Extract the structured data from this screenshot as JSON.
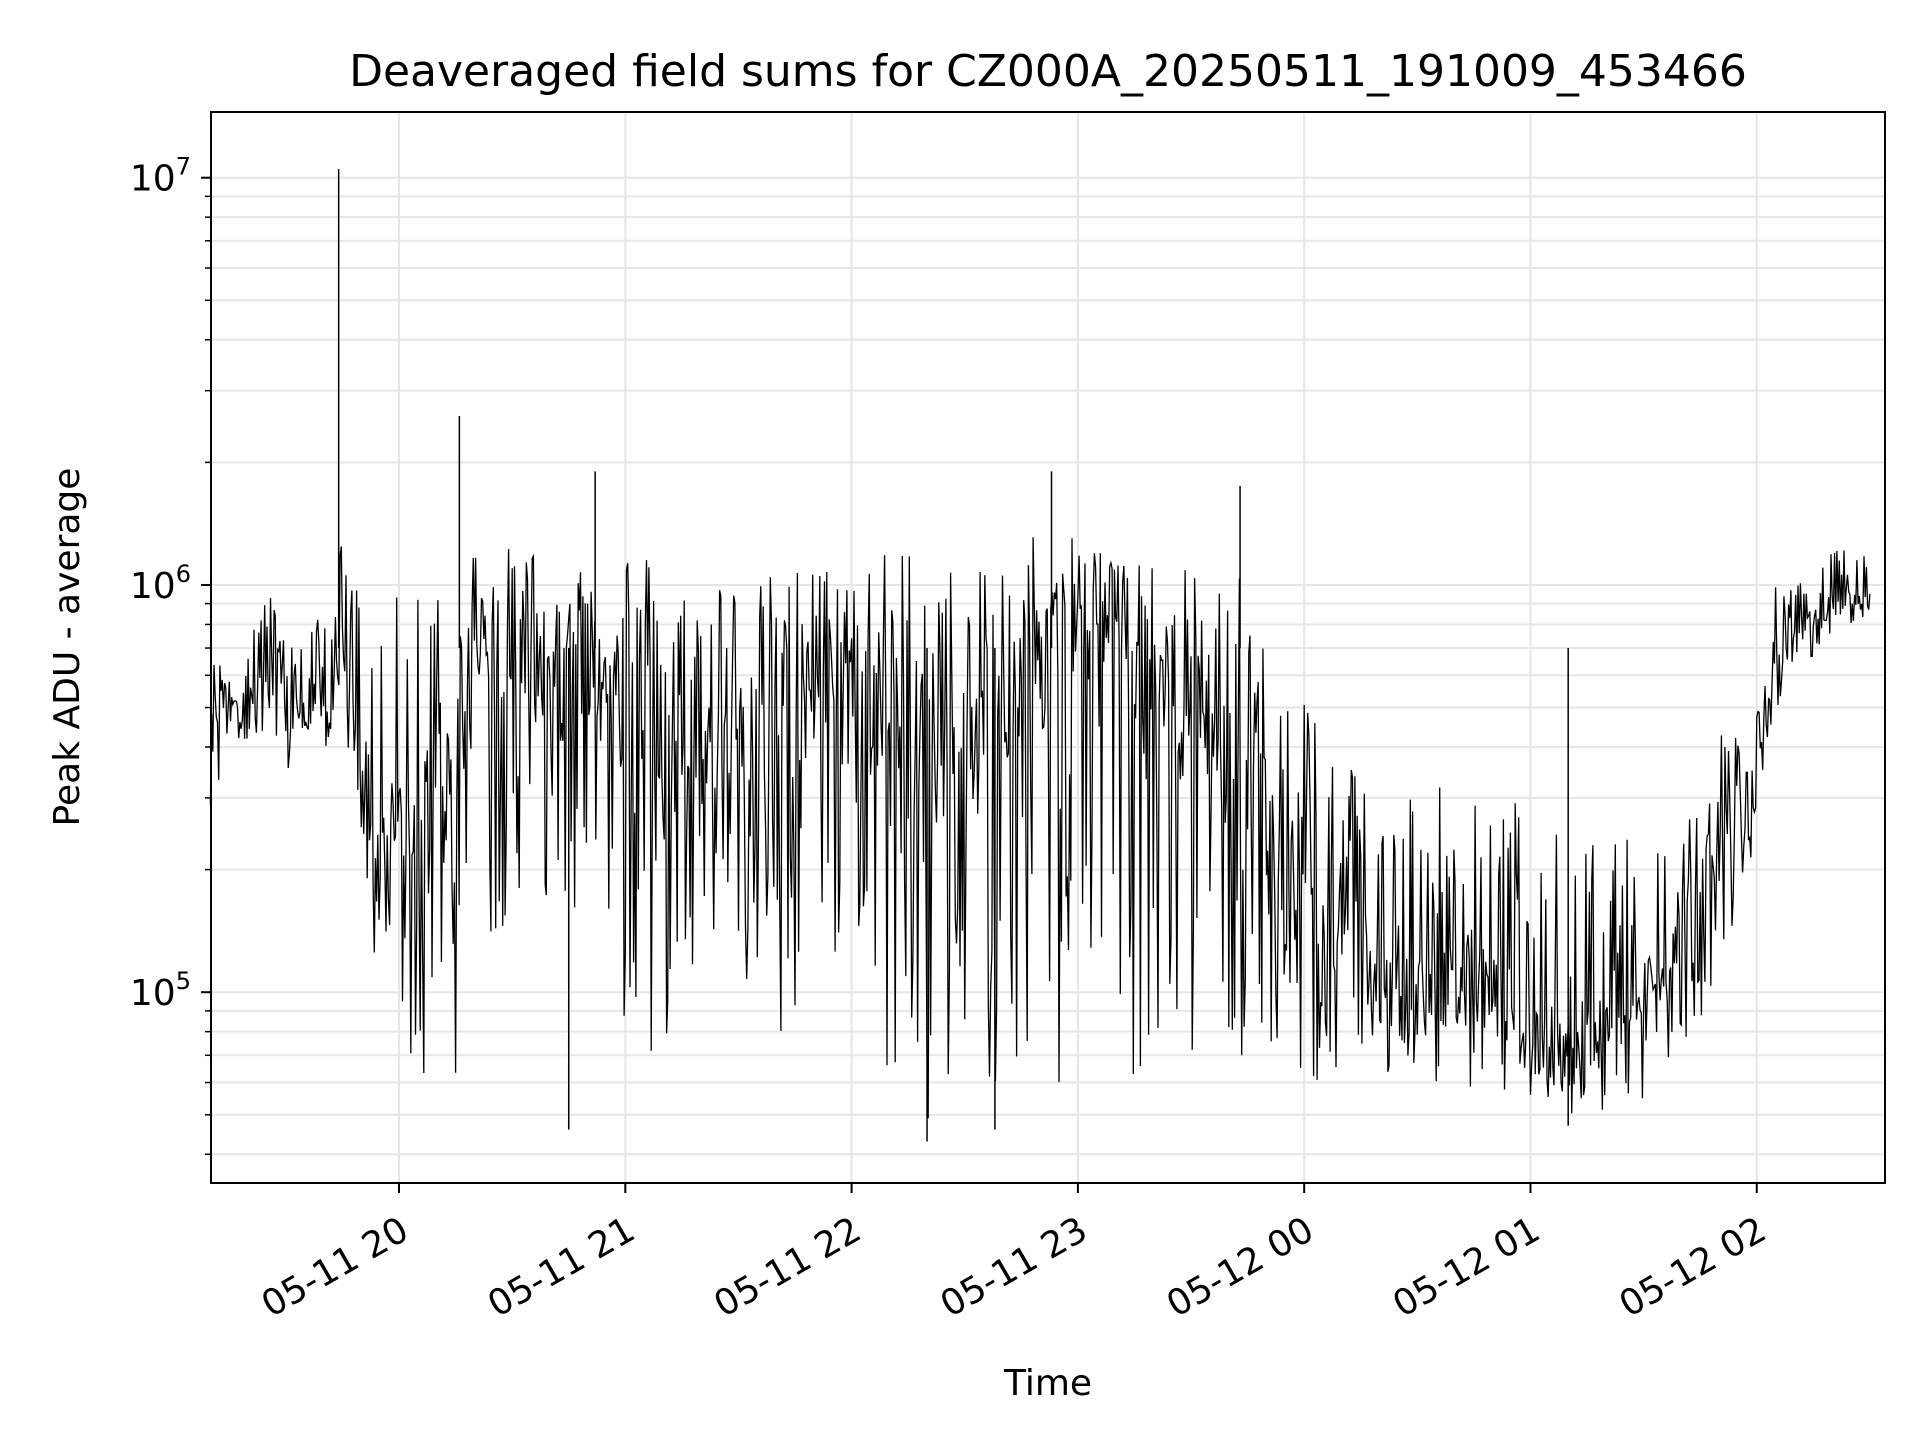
{
  "chart_data": {
    "type": "line",
    "title": "Deaveraged field sums for CZ000A_20250511_191009_453466",
    "xlabel": "Time",
    "ylabel": "Peak ADU - average",
    "y_scale": "log",
    "xlim": [
      "2025-05-11 19:10:09",
      "2025-05-12 02:34:00"
    ],
    "ylim": [
      34000,
      14500000
    ],
    "x_ticks": [
      {
        "t": "2025-05-11 20:00",
        "label": "05-11 20"
      },
      {
        "t": "2025-05-11 21:00",
        "label": "05-11 21"
      },
      {
        "t": "2025-05-11 22:00",
        "label": "05-11 22"
      },
      {
        "t": "2025-05-11 23:00",
        "label": "05-11 23"
      },
      {
        "t": "2025-05-12 00:00",
        "label": "05-12 00"
      },
      {
        "t": "2025-05-12 01:00",
        "label": "05-12 01"
      },
      {
        "t": "2025-05-12 02:00",
        "label": "05-12 02"
      }
    ],
    "y_ticks": [
      {
        "value": 100000,
        "base": "10",
        "exp": "5"
      },
      {
        "value": 1000000,
        "base": "10",
        "exp": "6"
      },
      {
        "value": 10000000,
        "base": "10",
        "exp": "7"
      }
    ],
    "grid": true,
    "line_color": "#000000",
    "series": [
      {
        "x": [
          "2025-05-11 19:10",
          "2025-05-11 19:15",
          "2025-05-11 19:20",
          "2025-05-11 19:25",
          "2025-05-11 19:30",
          "2025-05-11 19:35",
          "2025-05-11 19:40",
          "2025-05-11 19:45",
          "2025-05-11 19:50",
          "2025-05-11 19:55",
          "2025-05-11 20:00",
          "2025-05-11 20:05",
          "2025-05-11 20:10",
          "2025-05-11 20:15",
          "2025-05-11 20:20",
          "2025-05-11 20:25",
          "2025-05-11 20:30",
          "2025-05-11 20:35",
          "2025-05-11 20:40",
          "2025-05-11 20:45",
          "2025-05-11 20:50",
          "2025-05-11 20:55",
          "2025-05-11 21:00",
          "2025-05-11 21:05",
          "2025-05-11 21:10",
          "2025-05-11 21:15",
          "2025-05-11 21:20",
          "2025-05-11 21:25",
          "2025-05-11 21:30",
          "2025-05-11 21:35",
          "2025-05-11 21:40",
          "2025-05-11 21:45",
          "2025-05-11 21:50",
          "2025-05-11 21:55",
          "2025-05-11 22:00",
          "2025-05-11 22:05",
          "2025-05-11 22:10",
          "2025-05-11 22:15",
          "2025-05-11 22:20",
          "2025-05-11 22:25",
          "2025-05-11 22:30",
          "2025-05-11 22:35",
          "2025-05-11 22:40",
          "2025-05-11 22:45",
          "2025-05-11 22:50",
          "2025-05-11 22:55",
          "2025-05-11 23:00",
          "2025-05-11 23:05",
          "2025-05-11 23:10",
          "2025-05-11 23:15",
          "2025-05-11 23:20",
          "2025-05-11 23:25",
          "2025-05-11 23:30",
          "2025-05-11 23:35",
          "2025-05-11 23:40",
          "2025-05-11 23:45",
          "2025-05-11 23:50",
          "2025-05-11 23:55",
          "2025-05-12 00:00",
          "2025-05-12 00:05",
          "2025-05-12 00:10",
          "2025-05-12 00:15",
          "2025-05-12 00:20",
          "2025-05-12 00:25",
          "2025-05-12 00:30",
          "2025-05-12 00:35",
          "2025-05-12 00:40",
          "2025-05-12 00:45",
          "2025-05-12 00:50",
          "2025-05-12 00:55",
          "2025-05-12 01:00",
          "2025-05-12 01:05",
          "2025-05-12 01:10",
          "2025-05-12 01:15",
          "2025-05-12 01:20",
          "2025-05-12 01:25",
          "2025-05-12 01:30",
          "2025-05-12 01:35",
          "2025-05-12 01:40",
          "2025-05-12 01:45",
          "2025-05-12 01:50",
          "2025-05-12 01:55",
          "2025-05-12 02:00",
          "2025-05-12 02:05",
          "2025-05-12 02:10",
          "2025-05-12 02:15",
          "2025-05-12 02:20",
          "2025-05-12 02:25",
          "2025-05-12 02:30"
        ],
        "low": [
          230000,
          400000,
          420000,
          350000,
          300000,
          600000,
          290000,
          580000,
          160000,
          100000,
          90000,
          55000,
          60000,
          60000,
          160000,
          130000,
          160000,
          200000,
          60000,
          120000,
          130000,
          100000,
          80000,
          60000,
          70000,
          100000,
          120000,
          150000,
          100000,
          90000,
          70000,
          80000,
          120000,
          100000,
          200000,
          60000,
          55000,
          100000,
          45000,
          60000,
          70000,
          50000,
          45000,
          80000,
          60000,
          50000,
          90000,
          120000,
          80000,
          60000,
          60000,
          90000,
          70000,
          100000,
          80000,
          60000,
          50000,
          55000,
          60000,
          60000,
          55000,
          55000,
          55000,
          60000,
          55000,
          60000,
          60000,
          58000,
          58000,
          55000,
          55000,
          52000,
          50000,
          48000,
          50000,
          52000,
          55000,
          60000,
          70000,
          80000,
          110000,
          150000,
          250000,
          450000,
          650000,
          650000,
          750000,
          800000,
          800000
        ],
        "mid": [
          480000,
          530000,
          560000,
          580000,
          650000,
          420000,
          600000,
          700000,
          300000,
          200000,
          250000,
          220000,
          280000,
          350000,
          700000,
          800000,
          700000,
          650000,
          550000,
          650000,
          650000,
          600000,
          550000,
          500000,
          450000,
          400000,
          350000,
          400000,
          400000,
          450000,
          500000,
          550000,
          550000,
          600000,
          700000,
          500000,
          400000,
          450000,
          350000,
          350000,
          300000,
          450000,
          550000,
          650000,
          700000,
          700000,
          800000,
          900000,
          800000,
          700000,
          500000,
          400000,
          500000,
          450000,
          350000,
          300000,
          250000,
          180000,
          150000,
          140000,
          130000,
          120000,
          110000,
          100000,
          100000,
          100000,
          100000,
          100000,
          95000,
          90000,
          80000,
          75000,
          70000,
          70000,
          80000,
          90000,
          100000,
          120000,
          150000,
          180000,
          220000,
          280000,
          330000,
          750000,
          780000,
          800000,
          900000,
          950000,
          950000
        ],
        "high": [
          650000,
          700000,
          1000000,
          1000000,
          800000,
          720000,
          1000000,
          1300000,
          1000000,
          700000,
          1000000,
          1200000,
          1300000,
          1200000,
          1300000,
          1200000,
          1250000,
          1300000,
          1000000,
          1300000,
          1200000,
          1250000,
          1300000,
          1250000,
          1200000,
          1000000,
          1100000,
          1250000,
          1000000,
          1000000,
          1100000,
          1100000,
          1200000,
          1100000,
          1100000,
          1200000,
          1250000,
          1300000,
          1150000,
          1200000,
          1000000,
          1100000,
          1200000,
          1400000,
          1400000,
          1450000,
          1400000,
          1300000,
          1200000,
          1150000,
          1100000,
          1000000,
          1200000,
          1000000,
          1000000,
          1100000,
          900000,
          700000,
          600000,
          500000,
          400000,
          400000,
          380000,
          450000,
          300000,
          350000,
          320000,
          300000,
          300000,
          320000,
          250000,
          250000,
          250000,
          250000,
          220000,
          250000,
          200000,
          260000,
          280000,
          300000,
          450000,
          500000,
          500000,
          1000000,
          1000000,
          1100000,
          1200000,
          1300000,
          1250000
        ]
      }
    ],
    "annotations": [
      {
        "x": "2025-05-11 19:44",
        "y": 10500000
      },
      {
        "x": "2025-05-11 20:16",
        "y": 2600000
      },
      {
        "x": "2025-05-11 20:52",
        "y": 1900000
      },
      {
        "x": "2025-05-11 22:53",
        "y": 1900000
      },
      {
        "x": "2025-05-11 23:43",
        "y": 1750000
      },
      {
        "x": "2025-05-11 20:45",
        "y": 46000
      },
      {
        "x": "2025-05-11 22:20",
        "y": 43000
      },
      {
        "x": "2025-05-11 22:38",
        "y": 46000
      },
      {
        "x": "2025-05-12 01:10",
        "y": 47000
      }
    ]
  }
}
